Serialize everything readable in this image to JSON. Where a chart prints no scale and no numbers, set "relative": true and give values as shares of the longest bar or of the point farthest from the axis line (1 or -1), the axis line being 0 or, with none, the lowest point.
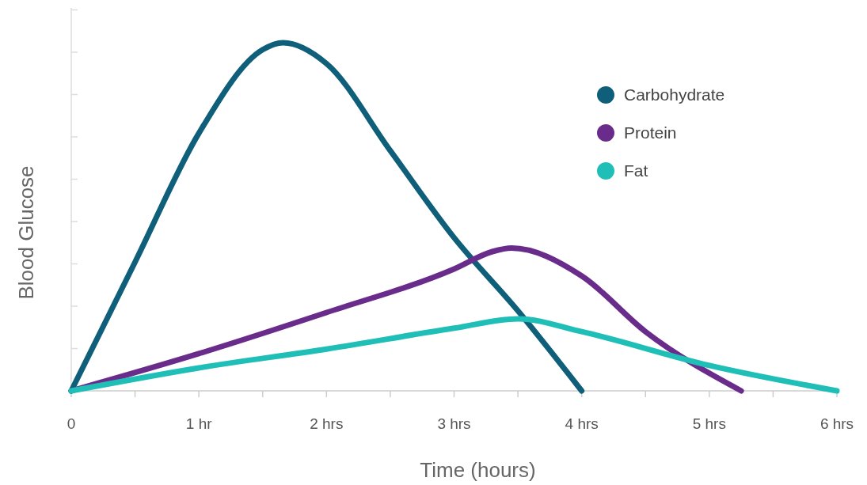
{
  "chart_data": {
    "type": "line",
    "relative": true,
    "xlabel": "Time (hours)",
    "ylabel": "Blood Glucose",
    "xlim": [
      0,
      6
    ],
    "xticks": [
      0,
      {
        "value": 0.5,
        "label": null
      },
      {
        "value": 1,
        "label": "1 hr"
      },
      {
        "value": 1.5,
        "label": null
      },
      {
        "value": 2,
        "label": "2 hrs"
      },
      {
        "value": 2.5,
        "label": null
      },
      {
        "value": 3,
        "label": "3 hrs"
      },
      {
        "value": 3.5,
        "label": null
      },
      {
        "value": 4,
        "label": "4 hrs"
      },
      {
        "value": 4.5,
        "label": null
      },
      {
        "value": 5,
        "label": "5 hrs"
      },
      {
        "value": 5.5,
        "label": null
      },
      {
        "value": 6,
        "label": "6 hrs"
      }
    ],
    "series": [
      {
        "name": "Carbohydrate",
        "color": "#0f5f7a",
        "x": [
          0,
          0.5,
          1,
          1.5,
          1.66,
          2,
          2.5,
          3,
          3.5,
          4
        ],
        "values": [
          0,
          0.37,
          0.74,
          0.98,
          1,
          0.94,
          0.69,
          0.44,
          0.23,
          0
        ]
      },
      {
        "name": "Protein",
        "color": "#6a2c8a",
        "x": [
          0,
          1,
          2,
          3,
          3.3,
          3.45,
          4,
          4.5,
          5.25
        ],
        "values": [
          0,
          0.107,
          0.225,
          0.35,
          0.4,
          0.41,
          0.33,
          0.17,
          0
        ]
      },
      {
        "name": "Fat",
        "color": "#1fbfb8",
        "x": [
          0,
          1,
          2,
          3,
          3.5,
          4,
          5,
          6
        ],
        "values": [
          0,
          0.066,
          0.12,
          0.18,
          0.207,
          0.17,
          0.073,
          0
        ]
      }
    ],
    "legend": "top right",
    "grid": false,
    "marker": "none",
    "line_style": "solid"
  }
}
